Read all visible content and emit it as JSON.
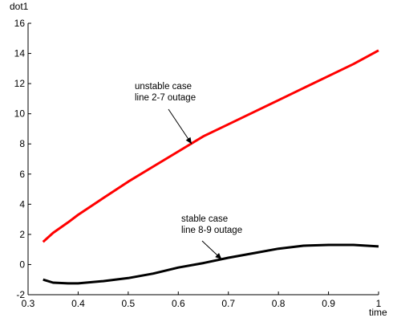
{
  "chart_data": {
    "type": "line",
    "ylabel": "dot1",
    "xlabel": "time",
    "xlim": [
      0.3,
      1.0
    ],
    "ylim": [
      -2,
      16
    ],
    "xticks": [
      0.3,
      0.4,
      0.5,
      0.6,
      0.7,
      0.8,
      0.9,
      1
    ],
    "xtick_labels": [
      "0.3",
      "0.4",
      "0.5",
      "0.6",
      "0.7",
      "0.8",
      "0.9",
      "1"
    ],
    "yticks": [
      -2,
      0,
      2,
      4,
      6,
      8,
      10,
      12,
      14,
      16
    ],
    "ytick_labels": [
      "-2",
      "0",
      "2",
      "4",
      "6",
      "8",
      "10",
      "12",
      "14",
      "16"
    ],
    "grid": false,
    "legend": "none",
    "series": [
      {
        "color": "#ff0000",
        "x": [
          0.33,
          0.35,
          0.38,
          0.4,
          0.45,
          0.5,
          0.55,
          0.6,
          0.65,
          0.7,
          0.75,
          0.8,
          0.85,
          0.9,
          0.95,
          1.0
        ],
        "y": [
          1.5,
          2.1,
          2.8,
          3.3,
          4.4,
          5.5,
          6.5,
          7.5,
          8.5,
          9.3,
          10.1,
          10.9,
          11.7,
          12.5,
          13.3,
          14.2
        ]
      },
      {
        "color": "#000000",
        "x": [
          0.33,
          0.35,
          0.38,
          0.4,
          0.45,
          0.5,
          0.55,
          0.6,
          0.65,
          0.7,
          0.75,
          0.8,
          0.85,
          0.9,
          0.95,
          1.0
        ],
        "y": [
          -1.0,
          -1.2,
          -1.25,
          -1.25,
          -1.1,
          -0.9,
          -0.6,
          -0.2,
          0.1,
          0.45,
          0.75,
          1.05,
          1.25,
          1.3,
          1.3,
          1.2
        ]
      }
    ],
    "annotations": [
      {
        "lines": [
          "unstable case",
          "line 2-7 outage"
        ],
        "arrow_to": [
          0.63,
          8.1
        ]
      },
      {
        "lines": [
          "stable case",
          "line 8-9 outage"
        ],
        "arrow_to": [
          0.69,
          0.45
        ]
      }
    ]
  }
}
